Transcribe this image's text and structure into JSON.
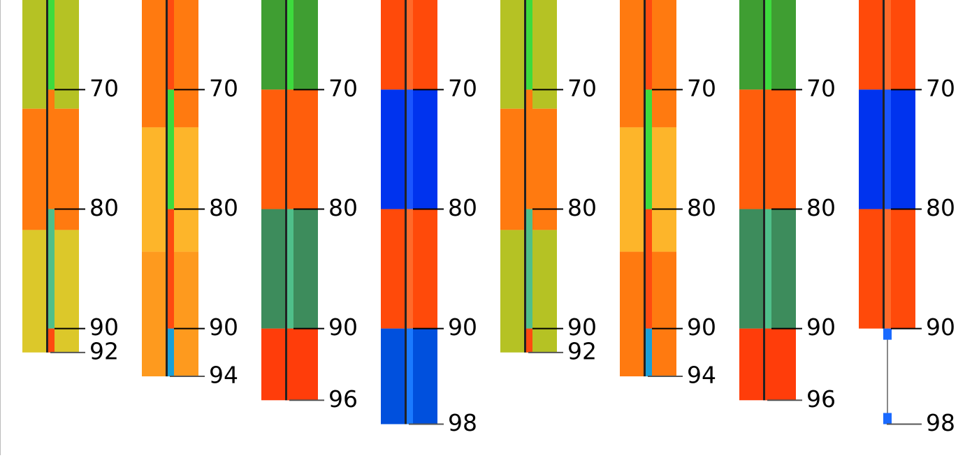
{
  "ylim": [
    62.5,
    100.6
  ],
  "columns": [
    {
      "ticks": [
        70,
        80,
        90,
        92
      ],
      "segments": [
        {
          "from": 62.5,
          "to": 71.6,
          "color": "#b5c224"
        },
        {
          "from": 71.6,
          "to": 81.75,
          "color": "#ff7a10"
        },
        {
          "from": 81.75,
          "to": 92,
          "color": "#dcc82a"
        }
      ],
      "core": [
        {
          "from": 62.5,
          "to": 70,
          "color": "#3ddb3d"
        },
        {
          "from": 70,
          "to": 80,
          "color": "#ff7a10"
        },
        {
          "from": 80,
          "to": 90,
          "color": "#4fbf8a"
        },
        {
          "from": 90,
          "to": 92,
          "color": "#ff4a10"
        }
      ]
    },
    {
      "ticks": [
        70,
        80,
        90,
        94
      ],
      "segments": [
        {
          "from": 62.5,
          "to": 73.16,
          "color": "#ff7a10"
        },
        {
          "from": 73.16,
          "to": 83.57,
          "color": "#fdb52a"
        },
        {
          "from": 83.57,
          "to": 94,
          "color": "#fe9a1e"
        }
      ],
      "core": [
        {
          "from": 62.5,
          "to": 70,
          "color": "#ff4a10"
        },
        {
          "from": 70,
          "to": 80,
          "color": "#3ddb3d"
        },
        {
          "from": 80,
          "to": 90,
          "color": "#ff4a10"
        },
        {
          "from": 90,
          "to": 94,
          "color": "#1aa0d8"
        }
      ]
    },
    {
      "ticks": [
        70,
        80,
        90,
        96
      ],
      "segments": [
        {
          "from": 62.5,
          "to": 70,
          "color": "#3f9e32"
        },
        {
          "from": 70,
          "to": 80,
          "color": "#ff5e0c"
        },
        {
          "from": 80,
          "to": 90,
          "color": "#3d8c5c"
        },
        {
          "from": 90,
          "to": 96,
          "color": "#ff3d0a"
        }
      ],
      "core": [
        {
          "from": 62.5,
          "to": 70,
          "color": "#3ddb3d"
        },
        {
          "from": 70,
          "to": 80,
          "color": "#ff5e0c"
        },
        {
          "from": 80,
          "to": 90,
          "color": "#4fbf8a"
        },
        {
          "from": 90,
          "to": 96,
          "color": "#ff3d0a"
        }
      ]
    },
    {
      "ticks": [
        70,
        80,
        90,
        98
      ],
      "segments": [
        {
          "from": 62.5,
          "to": 70,
          "color": "#ff4a0a"
        },
        {
          "from": 70,
          "to": 80,
          "color": "#0033ee"
        },
        {
          "from": 80,
          "to": 90,
          "color": "#ff4a0a"
        },
        {
          "from": 90,
          "to": 98,
          "color": "#0050dd"
        }
      ],
      "core": [
        {
          "from": 62.5,
          "to": 70,
          "color": "#ff6a2a"
        },
        {
          "from": 70,
          "to": 80,
          "color": "#1a55ff"
        },
        {
          "from": 80,
          "to": 90,
          "color": "#ff6a2a"
        },
        {
          "from": 90,
          "to": 98,
          "color": "#1a7aff"
        }
      ]
    },
    {
      "ticks": [
        70,
        80,
        90,
        92
      ],
      "segments": [
        {
          "from": 62.5,
          "to": 71.6,
          "color": "#b5c224"
        },
        {
          "from": 71.6,
          "to": 81.75,
          "color": "#ff7a10"
        },
        {
          "from": 81.75,
          "to": 92,
          "color": "#b5c224"
        }
      ],
      "core": [
        {
          "from": 62.5,
          "to": 70,
          "color": "#3ddb3d"
        },
        {
          "from": 70,
          "to": 80,
          "color": "#ff7a10"
        },
        {
          "from": 80,
          "to": 90,
          "color": "#4fbf8a"
        },
        {
          "from": 90,
          "to": 92,
          "color": "#ff4a10"
        }
      ]
    },
    {
      "ticks": [
        70,
        80,
        90,
        94
      ],
      "segments": [
        {
          "from": 62.5,
          "to": 73.16,
          "color": "#ff7a10"
        },
        {
          "from": 73.16,
          "to": 83.57,
          "color": "#fdb52a"
        },
        {
          "from": 83.57,
          "to": 94,
          "color": "#ff7a10"
        }
      ],
      "core": [
        {
          "from": 62.5,
          "to": 70,
          "color": "#ff4a10"
        },
        {
          "from": 70,
          "to": 80,
          "color": "#3ddb3d"
        },
        {
          "from": 80,
          "to": 90,
          "color": "#ff4a10"
        },
        {
          "from": 90,
          "to": 94,
          "color": "#1aa0d8"
        }
      ]
    },
    {
      "ticks": [
        70,
        80,
        90,
        96
      ],
      "segments": [
        {
          "from": 62.5,
          "to": 70,
          "color": "#3f9e32"
        },
        {
          "from": 70,
          "to": 80,
          "color": "#ff5e0c"
        },
        {
          "from": 80,
          "to": 90,
          "color": "#3d8c5c"
        },
        {
          "from": 90,
          "to": 96,
          "color": "#ff3d0a"
        }
      ],
      "core": [
        {
          "from": 62.5,
          "to": 70,
          "color": "#3ddb3d"
        },
        {
          "from": 70,
          "to": 80,
          "color": "#ff5e0c"
        },
        {
          "from": 80,
          "to": 90,
          "color": "#4fbf8a"
        },
        {
          "from": 90,
          "to": 96,
          "color": "#ff3d0a"
        }
      ]
    },
    {
      "ticks": [
        70,
        80,
        90,
        98
      ],
      "segments": [
        {
          "from": 62.5,
          "to": 70,
          "color": "#ff4a0a"
        },
        {
          "from": 70,
          "to": 80,
          "color": "#0033ee"
        },
        {
          "from": 80,
          "to": 90,
          "color": "#ff4a0a"
        }
      ],
      "core": [
        {
          "from": 62.5,
          "to": 70,
          "color": "#ff6a2a"
        },
        {
          "from": 70,
          "to": 80,
          "color": "#1a55ff"
        },
        {
          "from": 80,
          "to": 90,
          "color": "#ff6a2a"
        }
      ],
      "stick": {
        "from": 90,
        "to": 98,
        "color": "#1a6aff"
      }
    }
  ]
}
